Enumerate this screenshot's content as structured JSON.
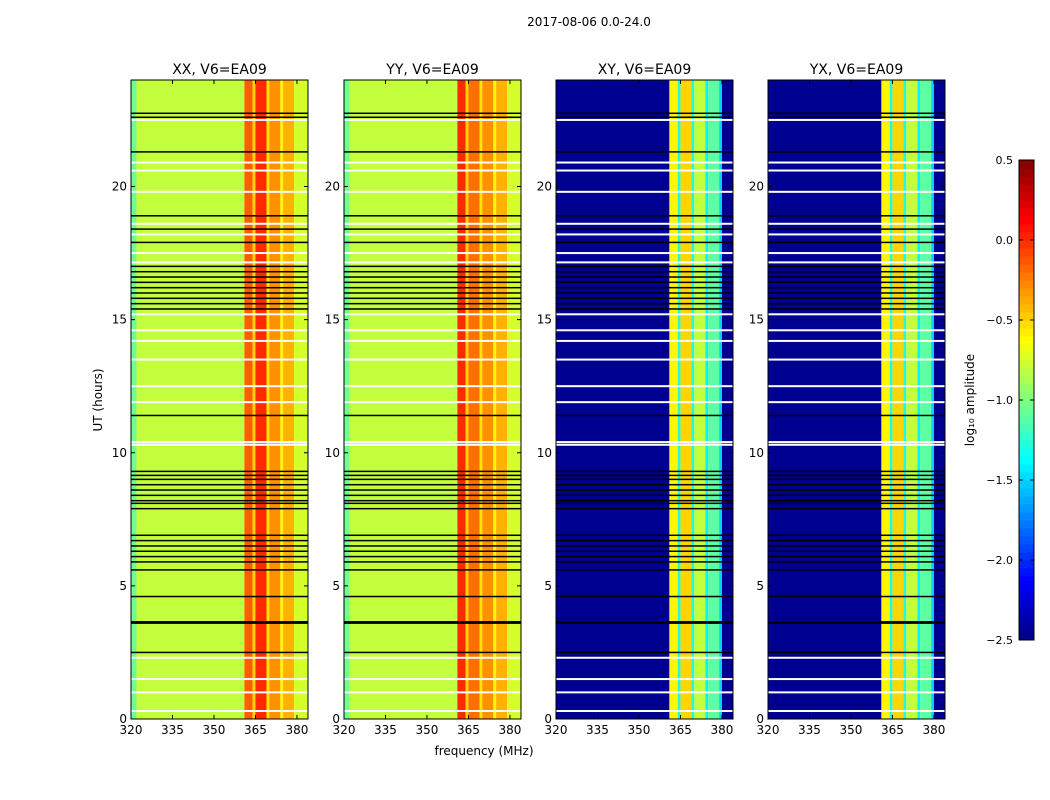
{
  "chart_data": {
    "type": "heatmap",
    "title": "2017-08-06 0.0-24.0",
    "xlabel": "frequency (MHz)",
    "ylabel": "UT (hours)",
    "xlim": [
      320,
      384
    ],
    "ylim": [
      0,
      24
    ],
    "xticks": [
      320,
      335,
      350,
      365,
      380
    ],
    "yticks": [
      0,
      5,
      10,
      15,
      20
    ],
    "colorbar": {
      "label": "log₁₀ amplitude",
      "range": [
        -2.5,
        0.5
      ],
      "ticks": [
        0.5,
        0.0,
        -0.5,
        -1.0,
        -1.5,
        -2.0,
        -2.5
      ],
      "tick_labels": [
        "0.5",
        "0.0",
        "−0.5",
        "−1.0",
        "−1.5",
        "−2.0",
        "−2.5"
      ],
      "colormap": "jet"
    },
    "flagged_black_hours": [
      22.75,
      22.6,
      21.3,
      18.9,
      18.4,
      17.9,
      17.0,
      16.8,
      16.6,
      16.4,
      16.2,
      16.0,
      15.8,
      15.6,
      15.4,
      11.4,
      9.3,
      9.15,
      9.0,
      8.8,
      8.6,
      8.4,
      8.2,
      8.1,
      7.9,
      6.9,
      6.7,
      6.5,
      6.3,
      6.1,
      5.9,
      5.6,
      4.6,
      3.65,
      3.6,
      2.5
    ],
    "flagged_white_hours": [
      22.5,
      20.9,
      20.6,
      19.8,
      18.6,
      18.2,
      17.5,
      17.15,
      15.2,
      14.6,
      14.2,
      13.5,
      12.5,
      11.9,
      10.4,
      10.3,
      2.3,
      1.5,
      1.0,
      0.3
    ],
    "panels": [
      {
        "title": "XX, V6=EA09",
        "bands": [
          [
            320,
            322,
            -1.05
          ],
          [
            322,
            361,
            -0.8
          ],
          [
            361,
            364,
            -0.15
          ],
          [
            364,
            365,
            -0.5
          ],
          [
            365,
            369,
            0.0
          ],
          [
            369,
            370,
            -0.55
          ],
          [
            370,
            374,
            -0.3
          ],
          [
            374,
            375,
            -0.6
          ],
          [
            375,
            379,
            -0.4
          ],
          [
            379,
            384,
            -0.75
          ]
        ]
      },
      {
        "title": "YY, V6=EA09",
        "bands": [
          [
            320,
            322,
            -1.05
          ],
          [
            322,
            361,
            -0.8
          ],
          [
            361,
            364,
            0.0
          ],
          [
            364,
            365,
            -0.5
          ],
          [
            365,
            369,
            -0.2
          ],
          [
            369,
            370,
            -0.55
          ],
          [
            370,
            374,
            -0.3
          ],
          [
            374,
            375,
            -0.6
          ],
          [
            375,
            379,
            -0.4
          ],
          [
            379,
            384,
            -0.75
          ]
        ]
      },
      {
        "title": "XY, V6=EA09",
        "bands": [
          [
            320,
            361,
            -2.45
          ],
          [
            361,
            364,
            -0.6
          ],
          [
            364,
            365,
            -1.3
          ],
          [
            365,
            369,
            -0.5
          ],
          [
            369,
            370,
            -1.3
          ],
          [
            370,
            374,
            -0.8
          ],
          [
            374,
            375,
            -1.4
          ],
          [
            375,
            379,
            -1.1
          ],
          [
            379,
            380,
            -1.5
          ],
          [
            380,
            384,
            -2.45
          ]
        ]
      },
      {
        "title": "YX, V6=EA09",
        "bands": [
          [
            320,
            361,
            -2.45
          ],
          [
            361,
            364,
            -0.6
          ],
          [
            364,
            365,
            -1.3
          ],
          [
            365,
            369,
            -0.5
          ],
          [
            369,
            370,
            -1.3
          ],
          [
            370,
            374,
            -0.8
          ],
          [
            374,
            375,
            -1.4
          ],
          [
            375,
            379,
            -1.1
          ],
          [
            379,
            380,
            -1.5
          ],
          [
            380,
            384,
            -2.45
          ]
        ]
      }
    ]
  }
}
